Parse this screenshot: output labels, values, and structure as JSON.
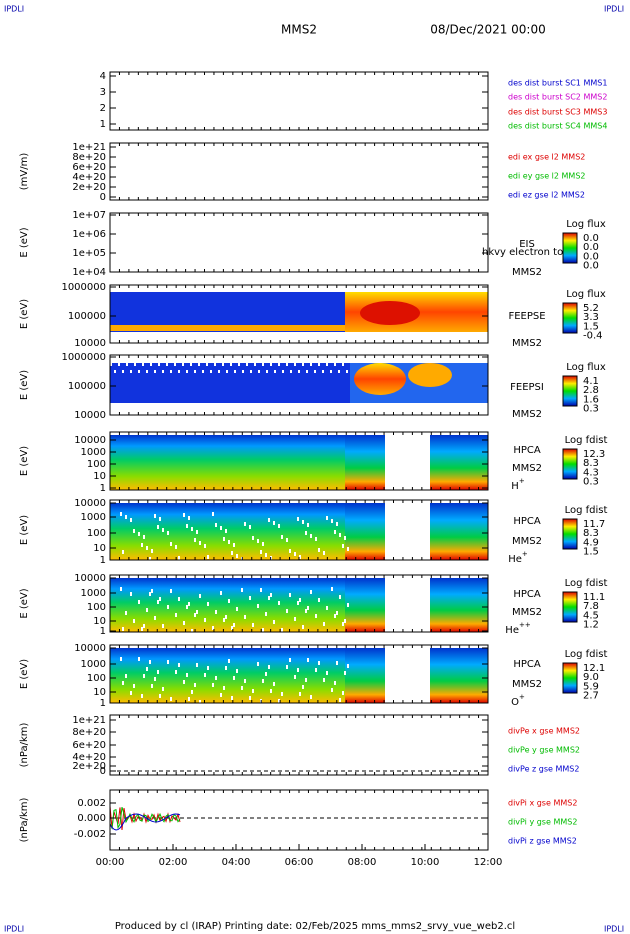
{
  "header": {
    "corner_left": "IPDLI",
    "corner_right": "IPDLI",
    "spacecraft": "MMS2",
    "date": "08/Dec/2021 00:00"
  },
  "panels": [
    {
      "yticks": [
        "4",
        "3",
        "2",
        "1"
      ],
      "legend": [
        {
          "text": "des dist burst SC1 MMS1",
          "color": "#0000cc"
        },
        {
          "text": "des dist burst SC2 MMS2",
          "color": "#cc00cc"
        },
        {
          "text": "des dist burst SC3 MMS3",
          "color": "#dd0000"
        },
        {
          "text": "des dist burst SC4 MMS4",
          "color": "#00bb00"
        }
      ]
    },
    {
      "ylabel": "(mV/m)",
      "yticks": [
        "1e+21",
        "8e+20",
        "6e+20",
        "4e+20",
        "2e+20",
        "0"
      ],
      "legend": [
        {
          "text": "edi ex gse l2 MMS2",
          "color": "#dd0000"
        },
        {
          "text": "edi ey gse l2 MMS2",
          "color": "#00bb00"
        },
        {
          "text": "edi ez gse l2 MMS2",
          "color": "#0000cc"
        }
      ]
    },
    {
      "ylabel": "E (eV)",
      "yticks": [
        "1e+07",
        "1e+06",
        "1e+05",
        "1e+04"
      ],
      "instrument": [
        "EIS",
        "MMS2"
      ],
      "note": "hkvy electron to",
      "colorbar": {
        "title": "Log flux",
        "ticks": [
          "0.0",
          "0.0",
          "0.0",
          "0.0"
        ]
      }
    },
    {
      "ylabel": "E (eV)",
      "yticks": [
        "1000000",
        "100000",
        "10000"
      ],
      "instrument": [
        "FEEPSE",
        "MMS2"
      ],
      "colorbar": {
        "title": "Log flux",
        "ticks": [
          "5.2",
          "3.3",
          "1.5",
          "-0.4"
        ]
      }
    },
    {
      "ylabel": "E (eV)",
      "yticks": [
        "1000000",
        "100000",
        "10000"
      ],
      "instrument": [
        "FEEPSI",
        "MMS2"
      ],
      "colorbar": {
        "title": "Log flux",
        "ticks": [
          "4.1",
          "2.8",
          "1.6",
          "0.3"
        ]
      }
    },
    {
      "ylabel": "E (eV)",
      "yticks": [
        "10000",
        "1000",
        "100",
        "10",
        "1"
      ],
      "instrument": [
        "HPCA",
        "MMS2"
      ],
      "species": {
        "base": "H",
        "charge": "+"
      },
      "colorbar": {
        "title": "Log fdist",
        "ticks": [
          "12.3",
          "8.3",
          "4.3",
          "0.3"
        ]
      }
    },
    {
      "ylabel": "E (eV)",
      "yticks": [
        "10000",
        "1000",
        "100",
        "10",
        "1"
      ],
      "instrument": [
        "HPCA",
        "MMS2"
      ],
      "species": {
        "base": "He",
        "charge": "+"
      },
      "colorbar": {
        "title": "Log fdist",
        "ticks": [
          "11.7",
          "8.3",
          "4.9",
          "1.5"
        ]
      }
    },
    {
      "ylabel": "E (eV)",
      "yticks": [
        "10000",
        "1000",
        "100",
        "10",
        "1"
      ],
      "instrument": [
        "HPCA",
        "MMS2"
      ],
      "species": {
        "base": "He",
        "charge": "++"
      },
      "colorbar": {
        "title": "Log fdist",
        "ticks": [
          "11.1",
          "7.8",
          "4.5",
          "1.2"
        ]
      }
    },
    {
      "ylabel": "E (eV)",
      "yticks": [
        "10000",
        "1000",
        "100",
        "10",
        "1"
      ],
      "instrument": [
        "HPCA",
        "MMS2"
      ],
      "species": {
        "base": "O",
        "charge": "+"
      },
      "colorbar": {
        "title": "Log fdist",
        "ticks": [
          "12.1",
          "9.0",
          "5.9",
          "2.7"
        ]
      }
    },
    {
      "ylabel": "(nPa/km)",
      "yticks": [
        "1e+21",
        "8e+20",
        "6e+20",
        "4e+20",
        "2e+20",
        "0"
      ],
      "legend": [
        {
          "text": "divPe x gse MMS2",
          "color": "#dd0000"
        },
        {
          "text": "divPe y gse MMS2",
          "color": "#00bb00"
        },
        {
          "text": "divPe z gse MMS2",
          "color": "#0000cc"
        }
      ]
    },
    {
      "ylabel": "(nPa/km)",
      "yticks": [
        "0.002",
        "0.000",
        "-0.002"
      ],
      "legend": [
        {
          "text": "divPi x gse MMS2",
          "color": "#dd0000"
        },
        {
          "text": "divPi y gse MMS2",
          "color": "#00bb00"
        },
        {
          "text": "divPi z gse MMS2",
          "color": "#0000cc"
        }
      ]
    }
  ],
  "xticks": [
    "00:00",
    "02:00",
    "04:00",
    "06:00",
    "08:00",
    "10:00",
    "12:00"
  ],
  "footer": {
    "text": "Produced by cl (IRAP)   Printing date: 02/Feb/2025   mms_mms2_srvy_vue_web2.cl",
    "corner_left": "IPDLI",
    "corner_right": "IPDLI"
  }
}
